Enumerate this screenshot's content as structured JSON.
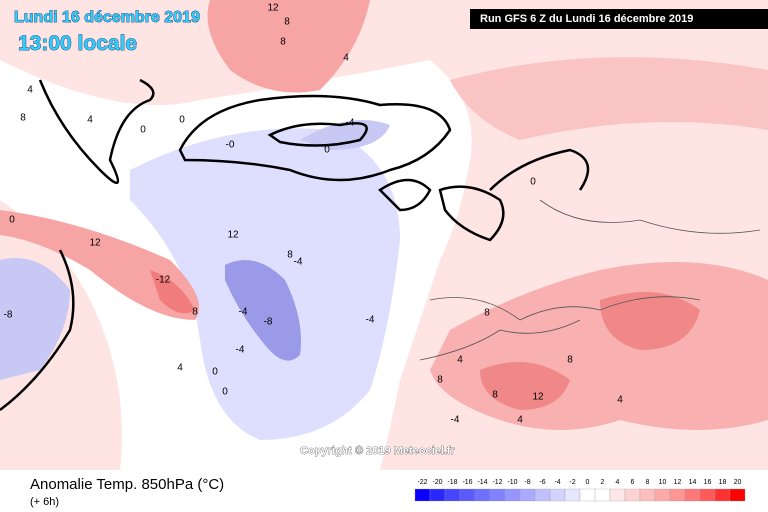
{
  "header": {
    "date": "Lundi 16 décembre 2019",
    "time": "13:00 locale",
    "run": "Run GFS 6 Z du Lundi 16 décembre 2019"
  },
  "map": {
    "copyright": "Copyright © 2019 Meteociel.fr",
    "contour_labels": [
      "12",
      "8",
      "8",
      "4",
      "4",
      "8",
      "4",
      "0",
      "0",
      "-0",
      "0",
      "-4",
      "0",
      "0",
      "12",
      "-12",
      "8",
      "12",
      "8",
      "-4",
      "-4",
      "-8",
      "-4",
      "-8",
      "-4",
      "0",
      "4",
      "0",
      "8",
      "8",
      "4",
      "8",
      "12",
      "8",
      "4",
      "4",
      "-4"
    ]
  },
  "legend": {
    "title": "Anomalie Temp. 850hPa (°C)",
    "subtitle": "(+ 6h)",
    "ticks": [
      -22,
      -20,
      -18,
      -16,
      -14,
      -12,
      -10,
      -8,
      -6,
      -4,
      -2,
      0,
      2,
      4,
      6,
      8,
      10,
      12,
      14,
      16,
      18,
      20
    ],
    "colors": [
      "#0a00ff",
      "#2828ff",
      "#4646ff",
      "#5a5aff",
      "#6e6eff",
      "#8282ff",
      "#9696ff",
      "#aaaaff",
      "#c0c0ff",
      "#d2d2ff",
      "#e6e6ff",
      "#ffffff",
      "#ffffff",
      "#ffe6e6",
      "#ffd2d2",
      "#ffbebe",
      "#ffaaaa",
      "#ff9696",
      "#ff7878",
      "#ff5a5a",
      "#ff3232",
      "#ff0000"
    ]
  }
}
